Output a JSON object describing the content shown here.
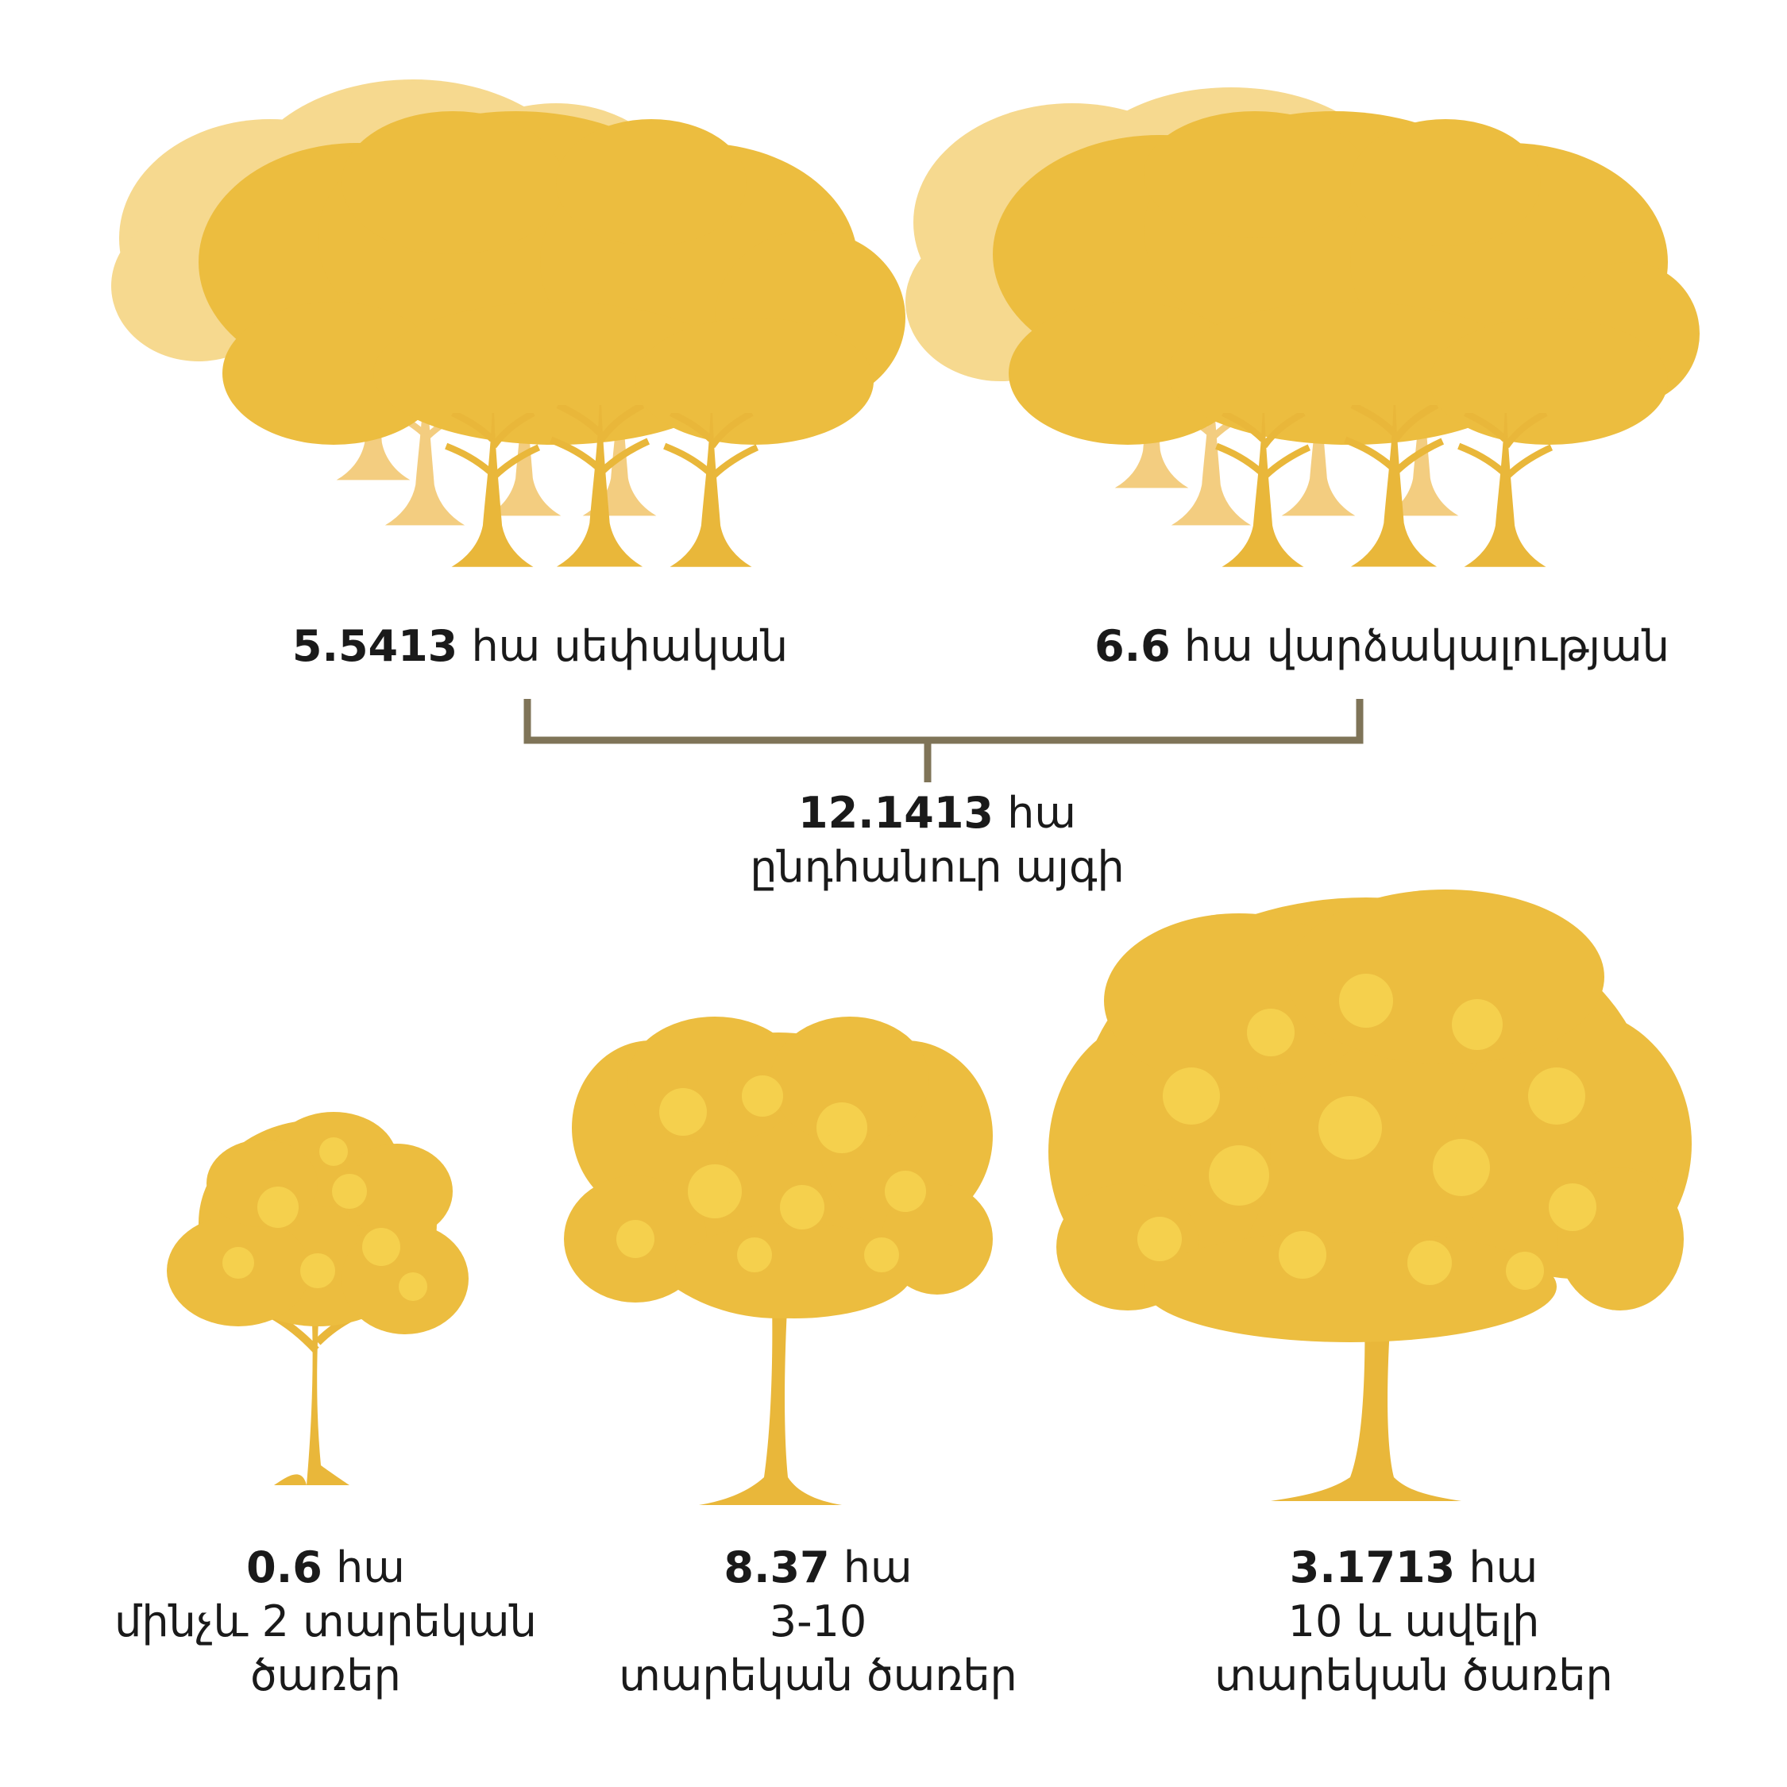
{
  "colors": {
    "foliage": "#ecbd3f",
    "foliage_light": "#f6d98f",
    "foliage_highlight": "#f7d450",
    "trunk": "#e9b73a",
    "bracket": "#7f7458"
  },
  "groups": {
    "private": {
      "value": "5.5413",
      "unit": "հա",
      "desc": "սեփական"
    },
    "rental": {
      "value": "6.6",
      "unit": "հա",
      "desc": "վարձակալության"
    },
    "total": {
      "value": "12.1413",
      "unit": "հա",
      "desc": "ընդհանուր այգի"
    }
  },
  "ages": {
    "young": {
      "value": "0.6",
      "unit": "հա",
      "line1": "մինչև 2 տարեկան",
      "line2": "ծառեր",
      "icon": "small-tree-icon"
    },
    "middle": {
      "value": "8.37",
      "unit": "հա",
      "line1": "3-10",
      "line2": "տարեկան ծառեր",
      "icon": "medium-tree-icon"
    },
    "old": {
      "value": "3.1713",
      "unit": "հա",
      "line1": "10 և ավելի",
      "line2": "տարեկան ծառեր",
      "icon": "large-tree-icon"
    }
  }
}
